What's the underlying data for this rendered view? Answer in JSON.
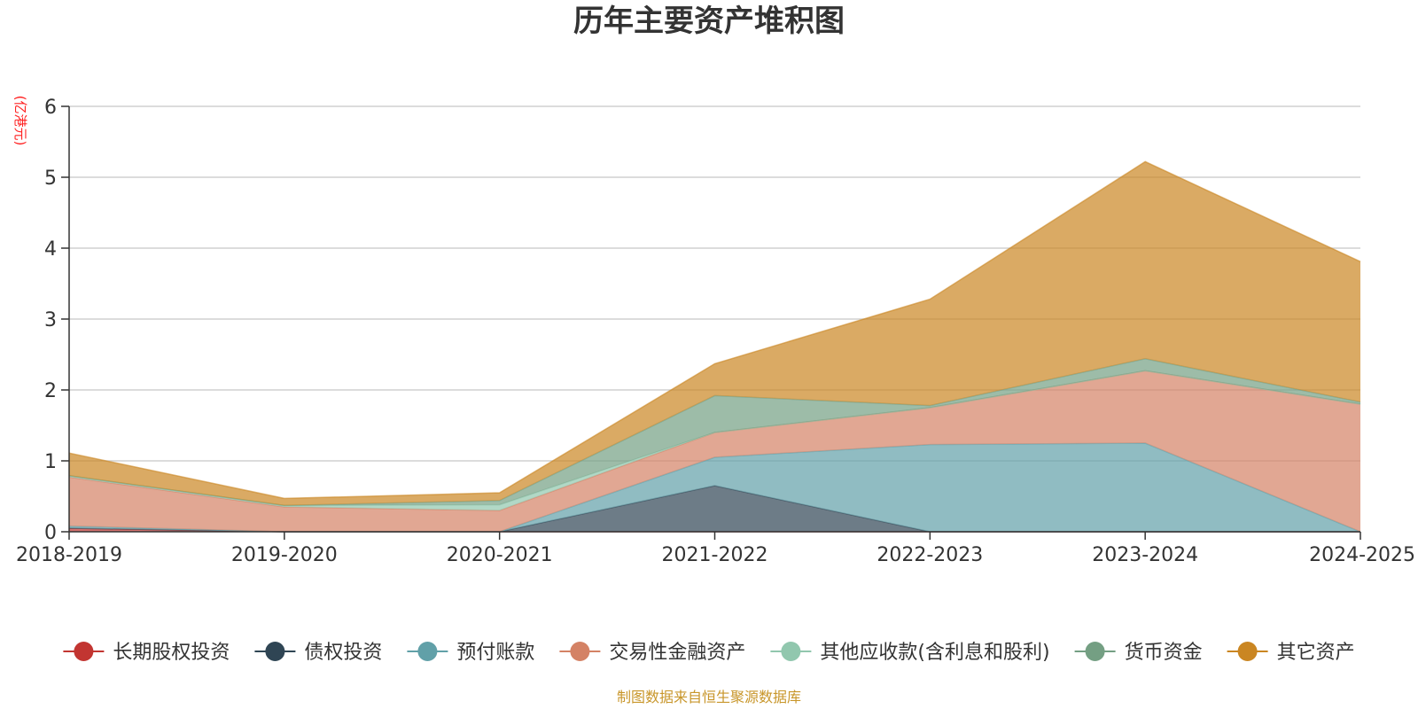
{
  "chart_data": {
    "type": "area",
    "stacked": true,
    "title": "历年主要资产堆积图",
    "unit_label": "(亿港元)",
    "categories": [
      "2018-2019",
      "2019-2020",
      "2020-2021",
      "2021-2022",
      "2022-2023",
      "2023-2024",
      "2024-2025"
    ],
    "ylim": [
      0,
      6
    ],
    "yticks": [
      0,
      1,
      2,
      3,
      4,
      5,
      6
    ],
    "grid": true,
    "legend_position": "bottom",
    "series": [
      {
        "name": "长期股权投资",
        "color": "#c23531",
        "values": [
          0.05,
          0.0,
          0.0,
          0.0,
          0.0,
          0.0,
          0.0
        ]
      },
      {
        "name": "债权投资",
        "color": "#2f4554",
        "values": [
          0.0,
          0.0,
          0.0,
          0.65,
          0.0,
          0.0,
          0.0
        ]
      },
      {
        "name": "预付账款",
        "color": "#61a0a8",
        "values": [
          0.03,
          0.0,
          0.0,
          0.4,
          1.23,
          1.25,
          0.0
        ]
      },
      {
        "name": "交易性金融资产",
        "color": "#d48265",
        "values": [
          0.69,
          0.35,
          0.3,
          0.35,
          0.52,
          1.02,
          1.8
        ]
      },
      {
        "name": "其他应收款(含利息和股利)",
        "color": "#91c7ae",
        "values": [
          0.02,
          0.02,
          0.08,
          0.0,
          0.0,
          0.0,
          0.0
        ]
      },
      {
        "name": "货币资金",
        "color": "#749f83",
        "values": [
          0.0,
          0.0,
          0.06,
          0.52,
          0.03,
          0.17,
          0.03
        ]
      },
      {
        "name": "其它资产",
        "color": "#ca8622",
        "values": [
          0.32,
          0.1,
          0.11,
          0.45,
          1.5,
          2.78,
          1.98
        ]
      }
    ]
  },
  "footer": {
    "source": "制图数据来自恒生聚源数据库"
  }
}
